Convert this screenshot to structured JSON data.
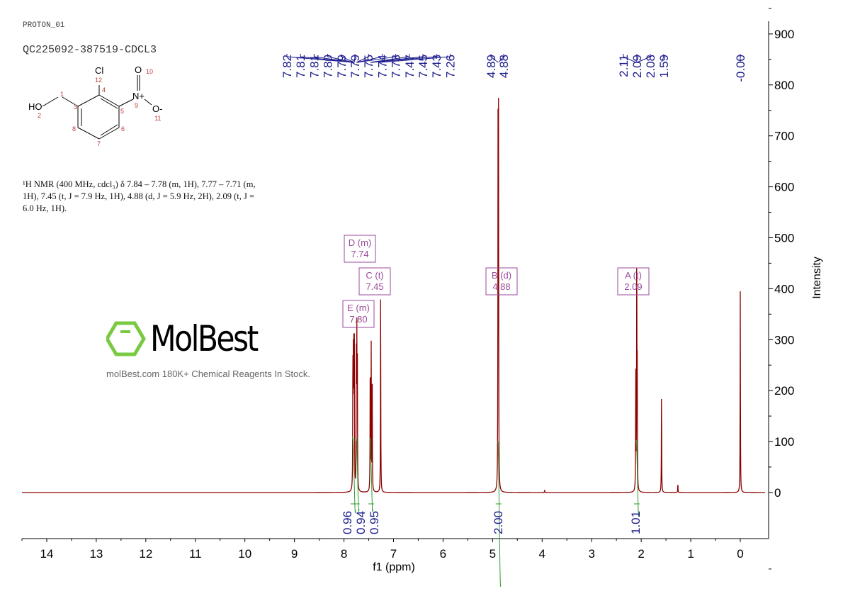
{
  "header": {
    "pulse_program": "PROTON_01",
    "sample_id": "QC225092-387519-CDCL3",
    "nmr_description": "¹H NMR (400 MHz, cdcl₃) δ 7.84 – 7.78 (m, 1H), 7.77 – 7.71 (m, 1H), 7.45 (t, J = 7.9 Hz, 1H), 4.88 (d, J = 5.9 Hz, 2H), 2.09 (t, J = 6.0 Hz, 1H)."
  },
  "structure": {
    "atoms": [
      "HO",
      "Cl",
      "N+",
      "O",
      "O-"
    ],
    "atom_numbers": [
      "1",
      "2",
      "3",
      "4",
      "5",
      "6",
      "7",
      "8",
      "9",
      "10",
      "11",
      "12"
    ]
  },
  "watermark": {
    "logo": "MolBest",
    "tagline": "molBest.com 180K+ Chemical Reagents In Stock."
  },
  "chart_data": {
    "type": "line",
    "xlabel": "f1 (ppm)",
    "ylabel": "Intensity",
    "xlim": [
      14.5,
      -0.5
    ],
    "ylim": [
      -90,
      930
    ],
    "x_ticks": [
      14,
      13,
      12,
      11,
      10,
      9,
      8,
      7,
      6,
      5,
      4,
      3,
      2,
      1,
      0
    ],
    "y_ticks": [
      0,
      100,
      200,
      300,
      400,
      500,
      600,
      700,
      800,
      900
    ],
    "x_reversed": true,
    "grid": false,
    "colors": {
      "spectrum": "#8b0000",
      "peak_labels": "#1a1a8c",
      "integrals": "#2e9a2e",
      "multiplet_boxes": "#9b4a9b"
    },
    "peaks": [
      {
        "ppm": 7.82,
        "height": 255
      },
      {
        "ppm": 7.81,
        "height": 270
      },
      {
        "ppm": 7.8,
        "height": 250
      },
      {
        "ppm": 7.79,
        "height": 270
      },
      {
        "ppm": 7.75,
        "height": 260
      },
      {
        "ppm": 7.74,
        "height": 285
      },
      {
        "ppm": 7.73,
        "height": 250
      },
      {
        "ppm": 7.47,
        "height": 270
      },
      {
        "ppm": 7.45,
        "height": 285
      },
      {
        "ppm": 7.43,
        "height": 225
      },
      {
        "ppm": 7.26,
        "height": 400
      },
      {
        "ppm": 4.89,
        "height": 705
      },
      {
        "ppm": 4.88,
        "height": 700
      },
      {
        "ppm": 3.95,
        "height": 5
      },
      {
        "ppm": 2.11,
        "height": 235
      },
      {
        "ppm": 2.09,
        "height": 478
      },
      {
        "ppm": 2.08,
        "height": 225
      },
      {
        "ppm": 1.59,
        "height": 195
      },
      {
        "ppm": 1.26,
        "height": 18
      },
      {
        "ppm": 0.0,
        "height": 395
      }
    ],
    "peak_labels": [
      "7.82",
      "7.81",
      "7.81",
      "7.80",
      "7.79",
      "7.79",
      "7.75",
      "7.74",
      "7.73",
      "7.47",
      "7.45",
      "7.43",
      "7.26",
      "4.89",
      "4.88",
      "2.11",
      "2.09",
      "2.08",
      "1.59",
      "-0.00"
    ],
    "multiplets": [
      {
        "id": "E",
        "type": "(m)",
        "shift": "7.80",
        "ppm": 7.8
      },
      {
        "id": "D",
        "type": "(m)",
        "shift": "7.74",
        "ppm": 7.74
      },
      {
        "id": "C",
        "type": "(t)",
        "shift": "7.45",
        "ppm": 7.45
      },
      {
        "id": "B",
        "type": "(d)",
        "shift": "4.88",
        "ppm": 4.88
      },
      {
        "id": "A",
        "type": "(t)",
        "shift": "2.09",
        "ppm": 2.09
      }
    ],
    "integrals": [
      {
        "ppm": 7.81,
        "value": "0.96"
      },
      {
        "ppm": 7.74,
        "value": "0.94"
      },
      {
        "ppm": 7.45,
        "value": "0.95"
      },
      {
        "ppm": 4.88,
        "value": "2.00"
      },
      {
        "ppm": 2.09,
        "value": "1.01"
      }
    ]
  }
}
